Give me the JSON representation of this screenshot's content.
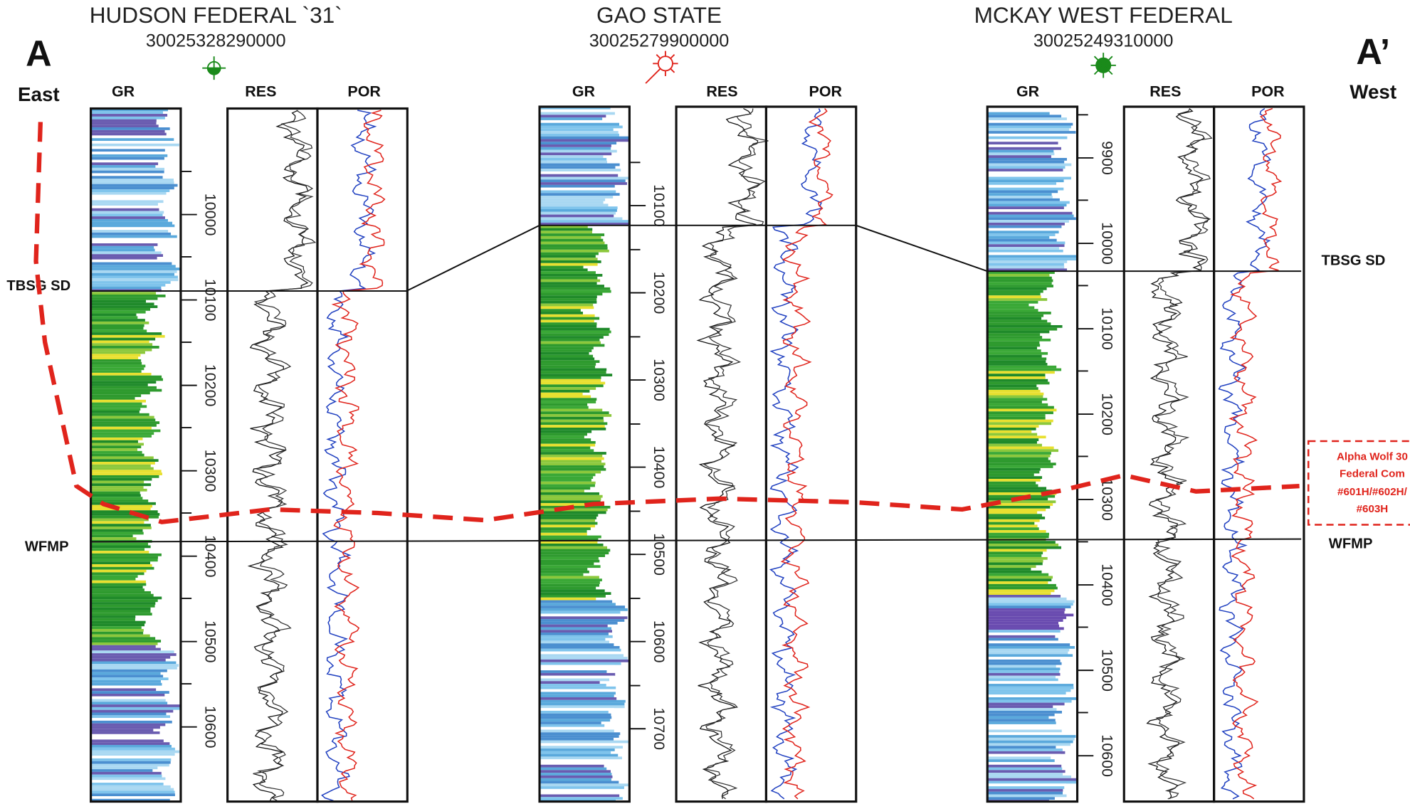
{
  "labels": {
    "left": "A",
    "left_dir": "East",
    "right": "A’",
    "right_dir": "West"
  },
  "wells": [
    {
      "name": "HUDSON FEDERAL `31`",
      "api": "30025328290000",
      "tracks": [
        "GR",
        "RES",
        "POR"
      ],
      "depths": [
        10000,
        10100,
        10200,
        10300,
        10400,
        10500,
        10600
      ]
    },
    {
      "name": "GAO STATE",
      "api": "30025279900000",
      "tracks": [
        "GR",
        "RES",
        "POR"
      ],
      "depths": [
        10100,
        10200,
        10300,
        10400,
        10500,
        10600,
        10700
      ]
    },
    {
      "name": "MCKAY WEST FEDERAL",
      "api": "30025249310000",
      "tracks": [
        "GR",
        "RES",
        "POR"
      ],
      "depths": [
        9900,
        10000,
        10100,
        10200,
        10300,
        10400,
        10500,
        10600
      ]
    }
  ],
  "markers": [
    "TBSG SD",
    "WFMP"
  ],
  "callout": [
    "Alpha Wolf 30",
    "Federal Com",
    "#601H/#602H/",
    "#603H"
  ]
}
